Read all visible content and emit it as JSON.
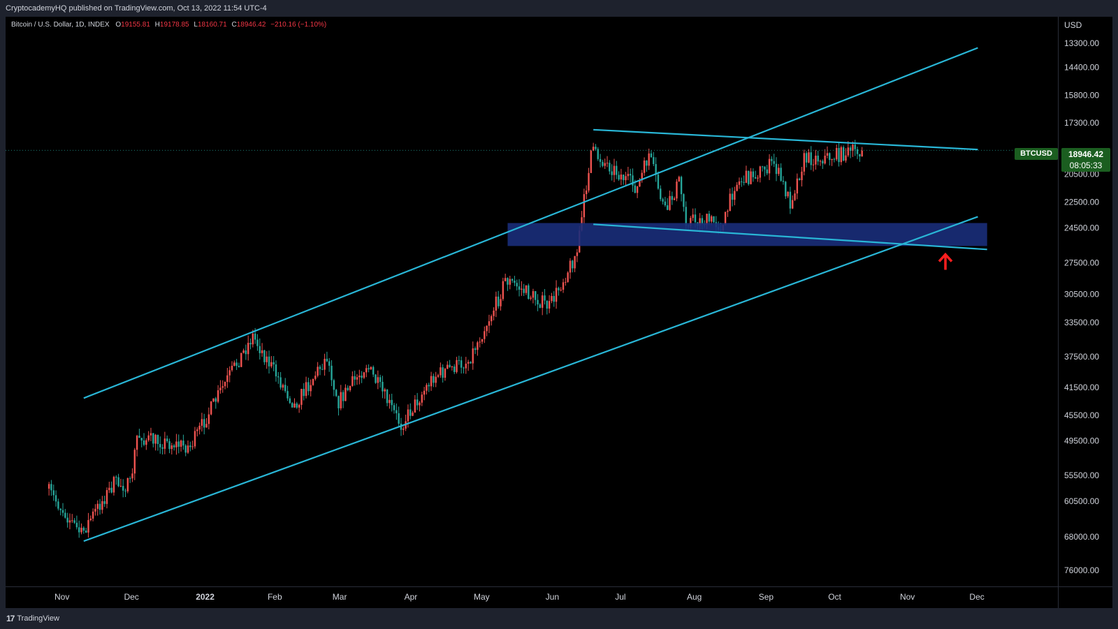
{
  "header": {
    "publisher_line": "CryptocademyHQ published on TradingView.com, Oct 13, 2022 11:54 UTC-4"
  },
  "legend": {
    "symbol": "Bitcoin / U.S. Dollar, 1D, INDEX",
    "o_label": "O",
    "o_value": "19155.81",
    "h_label": "H",
    "h_value": "19178.85",
    "l_label": "L",
    "l_value": "18160.71",
    "c_label": "C",
    "c_value": "18946.42",
    "change": "−210.16 (−1.10%)"
  },
  "price_axis": {
    "currency": "USD"
  },
  "current_price": {
    "symbol": "BTCUSD",
    "price": "18946.42",
    "countdown": "08:05:33",
    "color": "#1b5e20"
  },
  "footer": {
    "brand": "TradingView"
  },
  "colors": {
    "background": "#000000",
    "up": "#26a69a",
    "down": "#ef5350",
    "channel": "#29b6d6",
    "zone": "#1a2e7a",
    "arrow": "#ff1f1f"
  },
  "chart_data": {
    "type": "candlestick",
    "y_scale": "log",
    "y_inverted": true,
    "y_ticks": [
      "13300.00",
      "14400.00",
      "15800.00",
      "17300.00",
      "20500.00",
      "22500.00",
      "24500.00",
      "27500.00",
      "30500.00",
      "33500.00",
      "37500.00",
      "41500.00",
      "45500.00",
      "49500.00",
      "55500.00",
      "60500.00",
      "68000.00",
      "76000.00"
    ],
    "x_ticks": [
      {
        "label": "Nov",
        "bold": false
      },
      {
        "label": "Dec",
        "bold": false
      },
      {
        "label": "2022",
        "bold": true
      },
      {
        "label": "Feb",
        "bold": false
      },
      {
        "label": "Mar",
        "bold": false
      },
      {
        "label": "Apr",
        "bold": false
      },
      {
        "label": "May",
        "bold": false
      },
      {
        "label": "Jun",
        "bold": false
      },
      {
        "label": "Jul",
        "bold": false
      },
      {
        "label": "Aug",
        "bold": false
      },
      {
        "label": "Sep",
        "bold": false
      },
      {
        "label": "Oct",
        "bold": false
      },
      {
        "label": "Nov",
        "bold": false
      },
      {
        "label": "Dec",
        "bold": false
      }
    ],
    "last_close": 18946.42,
    "trend_lines": [
      {
        "name": "channel-upper",
        "from": [
          "2021-11-10",
          43000
        ],
        "to": [
          "2022-12-01",
          13500
        ]
      },
      {
        "name": "channel-lower",
        "from": [
          "2021-11-10",
          69000
        ],
        "to": [
          "2022-12-01",
          23600
        ]
      },
      {
        "name": "range-top",
        "from": [
          "2022-06-18",
          17700
        ],
        "to": [
          "2022-12-01",
          18900
        ]
      },
      {
        "name": "range-bottom",
        "from": [
          "2022-06-18",
          24200
        ],
        "to": [
          "2022-12-05",
          26300
        ]
      }
    ],
    "support_zone": {
      "from": "2022-05-12",
      "to": "2022-12-05",
      "top": 24100,
      "bottom": 26000
    },
    "annotation": {
      "type": "arrow-up",
      "date": "2022-11-17",
      "price": 28000
    }
  }
}
